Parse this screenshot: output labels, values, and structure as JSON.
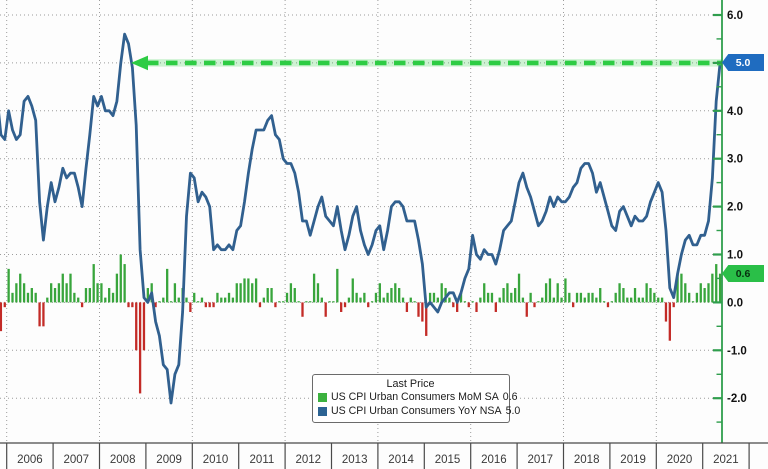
{
  "chart_data": {
    "type": "line+bar",
    "title": "",
    "x_start": "2005-10",
    "x_end": "2021-05",
    "frequency": "monthly",
    "x_year_labels": [
      "2006",
      "2007",
      "2008",
      "2009",
      "2010",
      "2011",
      "2012",
      "2013",
      "2014",
      "2015",
      "2016",
      "2017",
      "2018",
      "2019",
      "2020",
      "2021"
    ],
    "y_axis": {
      "side": "right",
      "min": -2.0,
      "max": 6.0,
      "tick_step": 1.0,
      "minor_tick_step": 0.5,
      "tick_labels": [
        "6.0",
        "5.0",
        "4.0",
        "3.0",
        "2.0",
        "1.0",
        "0.0",
        "-1.0",
        "-2.0"
      ],
      "axis_color": "#2f9e4d",
      "label_color": "#111111"
    },
    "grid": {
      "style": "dotted",
      "color": "#9c9c9c",
      "vertical_every_years": 2
    },
    "series": [
      {
        "name": "US CPI Urban Consumers MoM SA",
        "type": "bar",
        "last_value": 0.6,
        "color_positive": "#38a53c",
        "color_negative": "#c32b27",
        "values": [
          0.2,
          -0.6,
          -0.1,
          0.7,
          0.2,
          0.4,
          0.6,
          0.4,
          0.2,
          0.3,
          0.2,
          -0.5,
          -0.5,
          0.1,
          0.4,
          0.3,
          0.4,
          0.6,
          0.4,
          0.6,
          0.2,
          0.1,
          -0.1,
          0.3,
          0.3,
          0.8,
          0.4,
          0.4,
          0.1,
          0.3,
          0.2,
          0.6,
          1.0,
          0.8,
          -0.1,
          -0.1,
          -1.0,
          -1.9,
          -1.0,
          0.3,
          0.4,
          -0.1,
          0.0,
          0.1,
          0.7,
          0.0,
          0.4,
          0.1,
          0.3,
          0.1,
          -0.2,
          0.2,
          0.0,
          0.1,
          -0.1,
          -0.1,
          -0.1,
          0.2,
          0.1,
          0.1,
          0.2,
          0.1,
          0.4,
          0.4,
          0.5,
          0.5,
          0.4,
          0.5,
          -0.1,
          0.1,
          0.3,
          0.3,
          -0.1,
          0.0,
          0.0,
          0.2,
          0.4,
          0.3,
          0.0,
          -0.3,
          0.0,
          0.0,
          0.6,
          0.4,
          0.1,
          -0.3,
          0.0,
          0.0,
          0.7,
          -0.2,
          -0.1,
          0.1,
          0.5,
          0.2,
          0.1,
          0.2,
          -0.1,
          0.0,
          0.2,
          0.4,
          0.1,
          0.2,
          0.3,
          0.4,
          0.3,
          0.1,
          -0.2,
          0.1,
          0.0,
          -0.3,
          -0.4,
          -0.7,
          0.2,
          0.2,
          0.1,
          0.4,
          0.3,
          0.1,
          -0.1,
          -0.2,
          0.2,
          0.0,
          -0.1,
          0.0,
          -0.2,
          0.1,
          0.4,
          0.2,
          0.2,
          -0.2,
          0.1,
          0.3,
          0.4,
          0.2,
          0.3,
          0.6,
          0.1,
          -0.3,
          0.2,
          -0.1,
          0.0,
          0.1,
          0.4,
          0.5,
          0.1,
          0.4,
          0.1,
          0.5,
          0.2,
          -0.1,
          0.2,
          0.2,
          0.1,
          0.2,
          0.2,
          0.1,
          0.3,
          0.0,
          -0.1,
          0.0,
          0.2,
          0.4,
          0.3,
          0.1,
          0.1,
          0.3,
          0.1,
          0.1,
          0.4,
          0.3,
          0.2,
          0.1,
          0.1,
          -0.4,
          -0.8,
          -0.1,
          0.6,
          0.6,
          0.4,
          0.2,
          0.0,
          0.2,
          0.4,
          0.3,
          0.4,
          0.6,
          0.8,
          0.6
        ]
      },
      {
        "name": "US CPI Urban Consumers YoY NSA",
        "type": "line",
        "last_value": 5.0,
        "color": "#31608f",
        "values": [
          4.3,
          3.5,
          3.4,
          4.0,
          3.6,
          3.4,
          3.5,
          4.2,
          4.3,
          4.1,
          3.8,
          2.1,
          1.3,
          2.0,
          2.5,
          2.1,
          2.4,
          2.8,
          2.6,
          2.7,
          2.7,
          2.4,
          2.0,
          2.8,
          3.5,
          4.3,
          4.1,
          4.3,
          4.0,
          4.0,
          3.9,
          4.2,
          5.0,
          5.6,
          5.4,
          4.9,
          3.7,
          1.1,
          0.1,
          0.0,
          0.2,
          -0.4,
          -0.7,
          -1.3,
          -1.4,
          -2.1,
          -1.5,
          -1.3,
          -0.2,
          1.8,
          2.7,
          2.6,
          2.1,
          2.3,
          2.2,
          2.0,
          1.1,
          1.2,
          1.1,
          1.1,
          1.2,
          1.1,
          1.5,
          1.6,
          2.1,
          2.7,
          3.2,
          3.6,
          3.6,
          3.6,
          3.8,
          3.9,
          3.5,
          3.4,
          3.0,
          2.9,
          2.9,
          2.7,
          2.3,
          1.7,
          1.7,
          1.4,
          1.7,
          2.0,
          2.2,
          1.8,
          1.7,
          1.6,
          2.0,
          1.5,
          1.1,
          1.4,
          1.8,
          2.0,
          1.5,
          1.2,
          1.0,
          1.2,
          1.5,
          1.6,
          1.1,
          1.5,
          2.0,
          2.1,
          2.1,
          2.0,
          1.7,
          1.7,
          1.7,
          1.3,
          0.8,
          -0.1,
          0.0,
          -0.1,
          -0.2,
          0.0,
          0.1,
          0.2,
          0.2,
          0.0,
          0.2,
          0.5,
          0.7,
          1.4,
          1.0,
          0.9,
          1.1,
          1.0,
          1.0,
          0.8,
          1.1,
          1.5,
          1.6,
          1.7,
          2.1,
          2.5,
          2.7,
          2.4,
          2.2,
          1.9,
          1.6,
          1.7,
          1.9,
          2.2,
          2.0,
          2.2,
          2.1,
          2.1,
          2.2,
          2.4,
          2.5,
          2.8,
          2.9,
          2.9,
          2.7,
          2.3,
          2.5,
          2.2,
          1.9,
          1.6,
          1.5,
          1.9,
          2.0,
          1.8,
          1.6,
          1.8,
          1.7,
          1.7,
          1.8,
          2.1,
          2.3,
          2.5,
          2.3,
          1.5,
          0.3,
          0.1,
          0.6,
          1.0,
          1.3,
          1.4,
          1.2,
          1.2,
          1.4,
          1.4,
          1.7,
          2.6,
          4.2,
          5.0
        ]
      }
    ],
    "annotations": {
      "arrow": {
        "shape": "dashed-arrow-left",
        "at_value": 5.0,
        "color": "#2ecc44"
      },
      "tags": [
        {
          "text": "5.0",
          "at_value": 5.0,
          "bg": "#1f6cc0",
          "fg": "#ffffff"
        },
        {
          "text": "0.6",
          "at_value": 0.6,
          "bg": "#2abf48",
          "fg": "#07300f"
        }
      ]
    },
    "legend": {
      "title": "Last Price",
      "position": "bottom-center",
      "items": [
        {
          "swatch": "#3cb23f",
          "label": "US CPI Urban Consumers MoM SA",
          "value": "0.6"
        },
        {
          "swatch": "#2c6393",
          "label": "US CPI Urban Consumers YoY NSA",
          "value": "5.0"
        }
      ]
    }
  }
}
